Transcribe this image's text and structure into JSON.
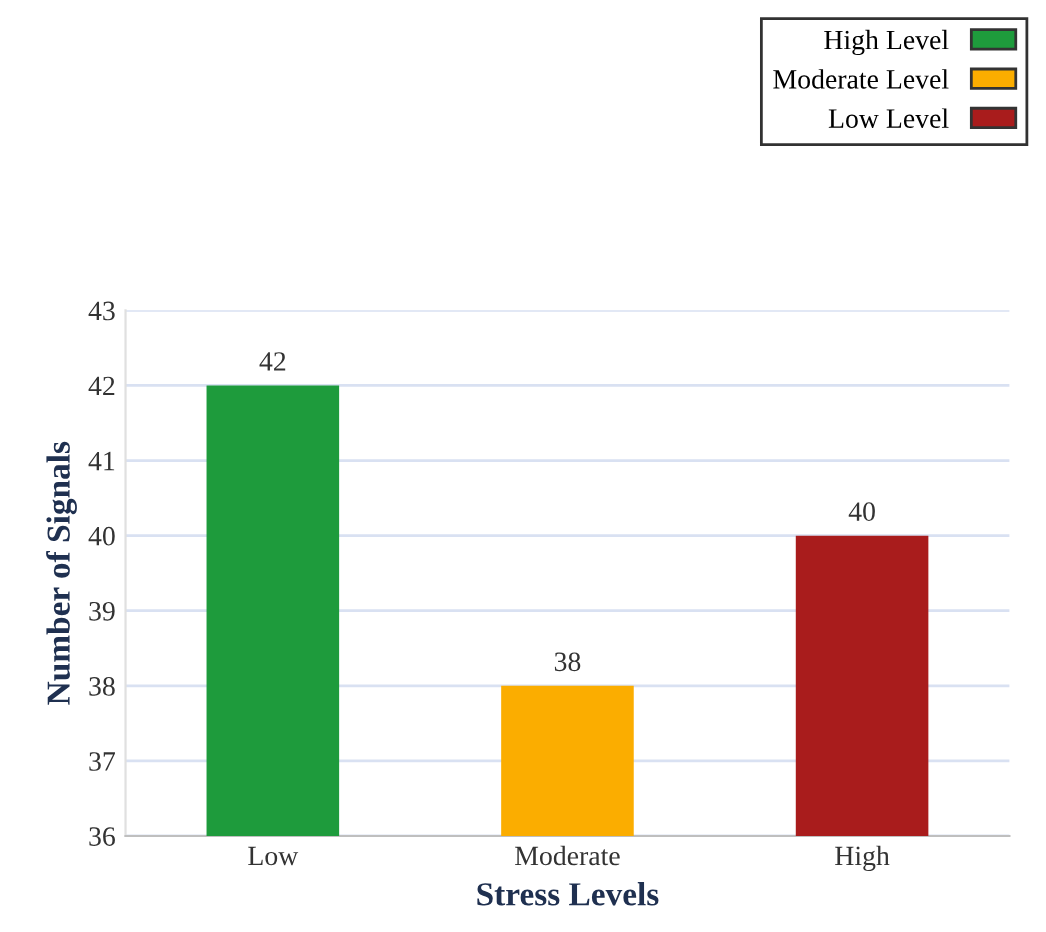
{
  "chart_data": {
    "type": "bar",
    "xlabel": "Stress Levels",
    "ylabel": "Number of Signals",
    "categories": [
      "Low",
      "Moderate",
      "High"
    ],
    "series": [
      {
        "name": "High Level",
        "color": "#1e9b3c",
        "values": [
          42,
          null,
          null
        ]
      },
      {
        "name": "Moderate Level",
        "color": "#fbad00",
        "values": [
          null,
          38,
          null
        ]
      },
      {
        "name": "Low Level",
        "color": "#a91c1c",
        "values": [
          null,
          null,
          40
        ]
      }
    ],
    "ylim": [
      36,
      43
    ],
    "yticks": [
      36,
      37,
      38,
      39,
      40,
      41,
      42,
      43
    ],
    "grid": "y",
    "data_labels": true,
    "legend": "top right"
  }
}
